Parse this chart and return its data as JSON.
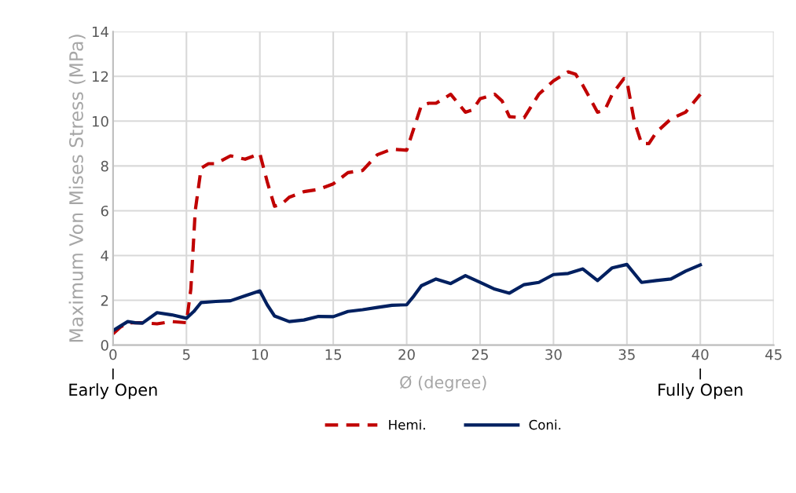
{
  "chart_data": {
    "type": "line",
    "xlabel": "Ø (degree)",
    "ylabel": "Maximum Von Mises Stress (MPa)",
    "xlim": [
      0,
      45
    ],
    "xticks": [
      0,
      5,
      10,
      15,
      20,
      25,
      30,
      35,
      40,
      45
    ],
    "ylim": [
      0,
      14
    ],
    "yticks": [
      0,
      2,
      4,
      6,
      8,
      10,
      12,
      14
    ],
    "grid": true,
    "legend": "bottom",
    "annotations": [
      {
        "text": "Early Open",
        "x": 0
      },
      {
        "text": "Fully Open",
        "x": 40
      }
    ],
    "series": [
      {
        "name": "Hemi.",
        "color": "#c00000",
        "line_style": "dashed",
        "x": [
          0,
          0.5,
          1,
          2,
          3,
          4,
          5,
          5.3,
          5.6,
          6,
          6.5,
          7,
          8,
          9,
          10,
          10.5,
          11,
          11.5,
          12,
          13,
          14,
          15,
          16,
          17,
          18,
          19,
          20,
          20.5,
          21,
          21.5,
          22,
          23,
          24,
          24.5,
          25,
          26,
          26.5,
          27,
          28,
          29,
          30,
          31,
          31.5,
          32,
          33,
          33.5,
          34,
          34.8,
          35,
          35.5,
          36,
          36.5,
          37,
          38,
          39,
          40
        ],
        "values": [
          0.5,
          0.8,
          1.0,
          1.0,
          0.95,
          1.05,
          1.0,
          2.5,
          6,
          7.9,
          8.1,
          8.1,
          8.45,
          8.3,
          8.55,
          7.3,
          6.2,
          6.3,
          6.6,
          6.85,
          6.95,
          7.2,
          7.7,
          7.8,
          8.5,
          8.75,
          8.7,
          9.7,
          10.7,
          10.8,
          10.8,
          11.2,
          10.4,
          10.5,
          11.0,
          11.2,
          10.9,
          10.2,
          10.15,
          11.2,
          11.8,
          12.2,
          12.1,
          11.6,
          10.4,
          10.5,
          11.2,
          11.9,
          11.8,
          10.0,
          9.0,
          9.0,
          9.5,
          10.1,
          10.4,
          11.2
        ]
      },
      {
        "name": "Coni.",
        "color": "#002060",
        "line_style": "solid",
        "x": [
          0,
          0.5,
          1,
          1.5,
          2,
          3,
          4,
          5,
          5.5,
          6,
          7,
          8,
          9,
          10,
          10.5,
          11,
          12,
          13,
          14,
          15,
          16,
          17,
          18,
          19,
          20,
          20.5,
          21,
          22,
          23,
          24,
          25,
          26,
          27,
          28,
          29,
          30,
          31,
          32,
          33,
          34,
          35,
          36,
          37,
          38,
          39,
          40
        ],
        "values": [
          0.65,
          0.85,
          1.05,
          1.0,
          0.98,
          1.45,
          1.35,
          1.2,
          1.5,
          1.9,
          1.95,
          1.98,
          2.2,
          2.42,
          1.8,
          1.3,
          1.05,
          1.12,
          1.28,
          1.27,
          1.5,
          1.58,
          1.68,
          1.78,
          1.8,
          2.2,
          2.65,
          2.95,
          2.75,
          3.1,
          2.8,
          2.5,
          2.32,
          2.7,
          2.8,
          3.15,
          3.2,
          3.4,
          2.88,
          3.45,
          3.6,
          2.8,
          2.88,
          2.95,
          3.3,
          3.58
        ]
      }
    ]
  }
}
